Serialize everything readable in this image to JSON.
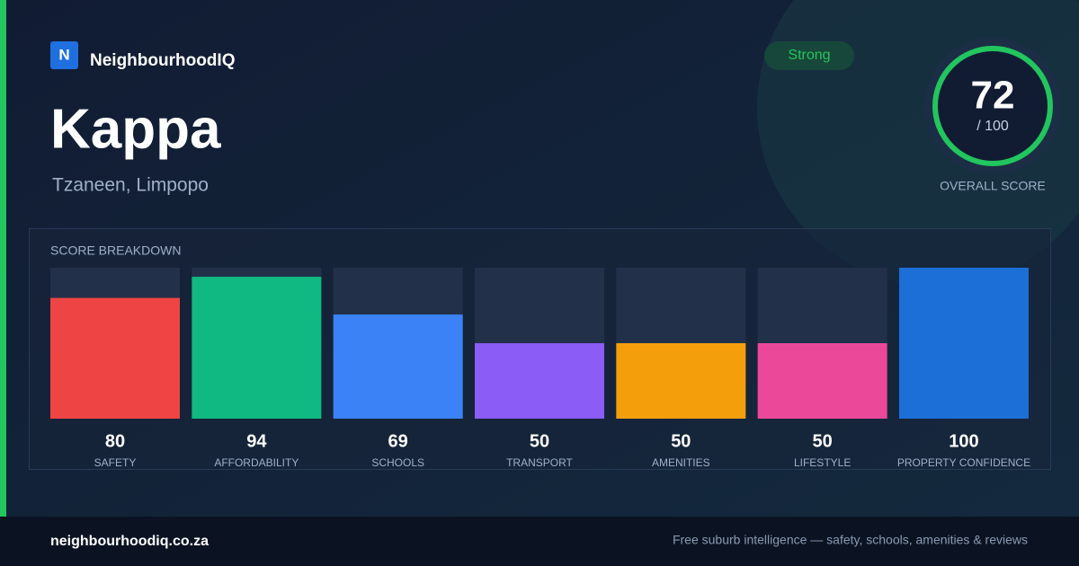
{
  "brand": "NeighbourhoodIQ",
  "brand_initial": "N",
  "title": "Kappa",
  "location": "Tzaneen, Limpopo",
  "badge": "Strong",
  "score": {
    "value": 72,
    "max_label": "/ 100",
    "label": "OVERALL SCORE"
  },
  "breakdown": {
    "title": "SCORE BREAKDOWN",
    "ylim": [
      0,
      100
    ],
    "categories": [
      "SAFETY",
      "AFFORDABILITY",
      "SCHOOLS",
      "TRANSPORT",
      "AMENITIES",
      "LIFESTYLE",
      "PROPERTY CONFIDENCE"
    ],
    "values": [
      80,
      94,
      69,
      50,
      50,
      50,
      100
    ],
    "colors": [
      "#ef4444",
      "#10b981",
      "#3b82f6",
      "#8b5cf6",
      "#f59e0b",
      "#ec4899",
      "#1d6fd8"
    ]
  },
  "footer": {
    "domain": "neighbourhoodiq.co.za",
    "tagline": "Free suburb intelligence — safety, schools, amenities & reviews"
  }
}
